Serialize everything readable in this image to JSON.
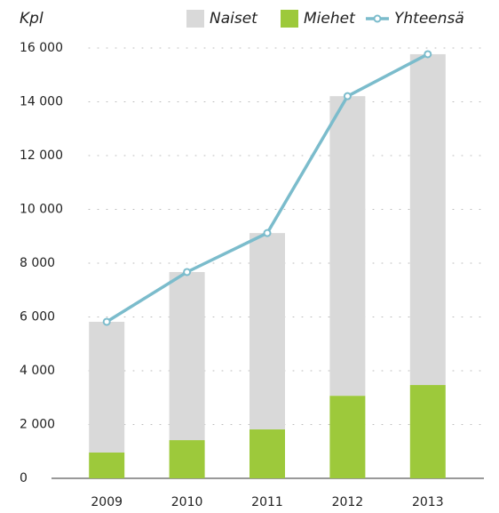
{
  "chart_data": {
    "type": "bar",
    "stacked": true,
    "y_label": "Kpl",
    "categories": [
      "2009",
      "2010",
      "2011",
      "2012",
      "2013"
    ],
    "series": [
      {
        "name": "Naiset",
        "color": "#d9d9d9",
        "type": "bar",
        "values": [
          4860,
          6250,
          7300,
          11140,
          12300
        ]
      },
      {
        "name": "Miehet",
        "color": "#9dc93b",
        "type": "bar",
        "values": [
          960,
          1420,
          1820,
          3070,
          3470
        ]
      },
      {
        "name": "Yhteensä",
        "color": "#7bbccc",
        "type": "line",
        "values": [
          5820,
          7670,
          9120,
          14210,
          15770
        ]
      }
    ],
    "ylim": [
      0,
      16000
    ],
    "yticks": [
      0,
      {
        "value": 2000,
        "label": "2 000"
      },
      {
        "value": 4000,
        "label": "4 000"
      },
      {
        "value": 6000,
        "label": "6 000"
      },
      {
        "value": 8000,
        "label": "8 000"
      },
      {
        "value": 10000,
        "label": "10 000"
      },
      {
        "value": 12000,
        "label": "12 000"
      },
      {
        "value": 14000,
        "label": "14 000"
      },
      {
        "value": 16000,
        "label": "16 000"
      }
    ],
    "grid": true
  }
}
